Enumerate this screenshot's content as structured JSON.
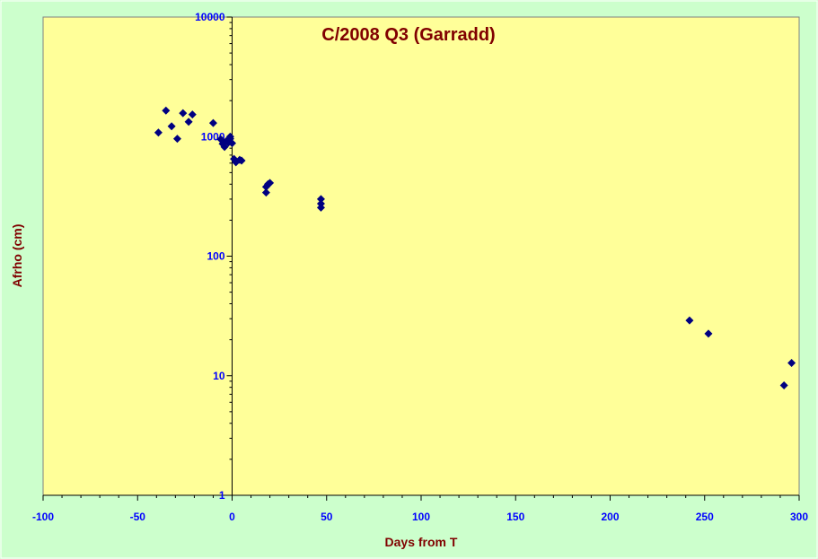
{
  "chart_data": {
    "type": "scatter",
    "title": "C/2008 Q3 (Garradd)",
    "xlabel": "Days from T",
    "ylabel": "Afrho (cm)",
    "xlim": [
      -100,
      300
    ],
    "ylim": [
      1,
      10000
    ],
    "yscale": "log",
    "x_ticks": [
      -100,
      -50,
      0,
      50,
      100,
      150,
      200,
      250,
      300
    ],
    "x_tick_labels": [
      "-100",
      "-50",
      "0",
      "50",
      "100",
      "150",
      "200",
      "250",
      "300"
    ],
    "y_ticks": [
      1,
      10,
      100,
      1000,
      10000
    ],
    "y_tick_labels": [
      "1",
      "10",
      "100",
      "1000",
      "10000"
    ],
    "grid": false,
    "legend": "none",
    "marker": "diamond",
    "colors": {
      "page_background": "#ccffcc",
      "plot_background": "#ffff99",
      "marker": "#000080",
      "title": "#800000",
      "tick_labels": "#0000ff"
    },
    "series": [
      {
        "x": [
          -39,
          -35,
          -32,
          -29,
          -26,
          -23,
          -21,
          -10,
          -6,
          -5,
          -4,
          -3,
          -2,
          -1,
          -1,
          0,
          1,
          2,
          4,
          5,
          18,
          18,
          19,
          20,
          47,
          47,
          47,
          242,
          252,
          292,
          296
        ],
        "y": [
          1080,
          1650,
          1220,
          960,
          1570,
          1330,
          1530,
          1300,
          950,
          870,
          820,
          920,
          890,
          960,
          1000,
          880,
          650,
          610,
          640,
          630,
          340,
          380,
          400,
          410,
          300,
          275,
          255,
          29,
          22.5,
          8.3,
          12.8
        ]
      }
    ]
  }
}
